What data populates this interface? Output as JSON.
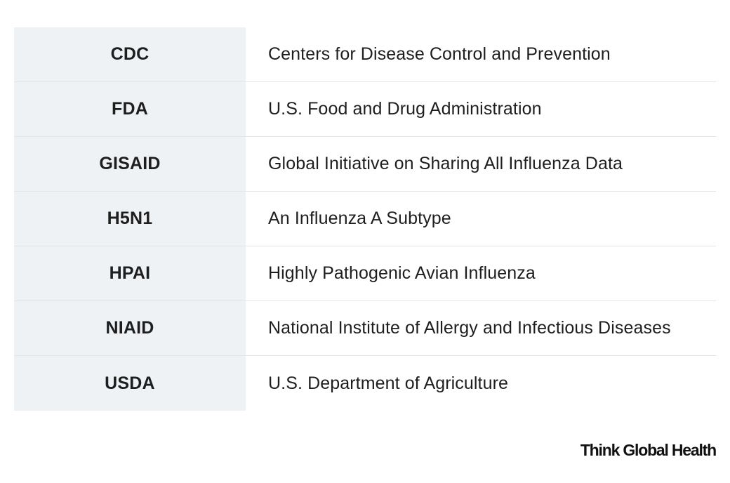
{
  "table": {
    "rows": [
      {
        "abbreviation": "CDC",
        "definition": "Centers for Disease Control and Prevention"
      },
      {
        "abbreviation": "FDA",
        "definition": "U.S. Food and Drug Administration"
      },
      {
        "abbreviation": "GISAID",
        "definition": "Global Initiative on Sharing All Influenza Data"
      },
      {
        "abbreviation": "H5N1",
        "definition": "An Influenza A Subtype"
      },
      {
        "abbreviation": "HPAI",
        "definition": "Highly Pathogenic Avian Influenza"
      },
      {
        "abbreviation": "NIAID",
        "definition": "National Institute of Allergy and Infectious Diseases"
      },
      {
        "abbreviation": "USDA",
        "definition": "U.S. Department of Agriculture"
      }
    ]
  },
  "footer": {
    "logo_text": "Think Global Health"
  },
  "colors": {
    "abbreviation_cell_background": "#eef2f5",
    "divider": "#e3e6e9",
    "text": "#1e1e1e"
  }
}
